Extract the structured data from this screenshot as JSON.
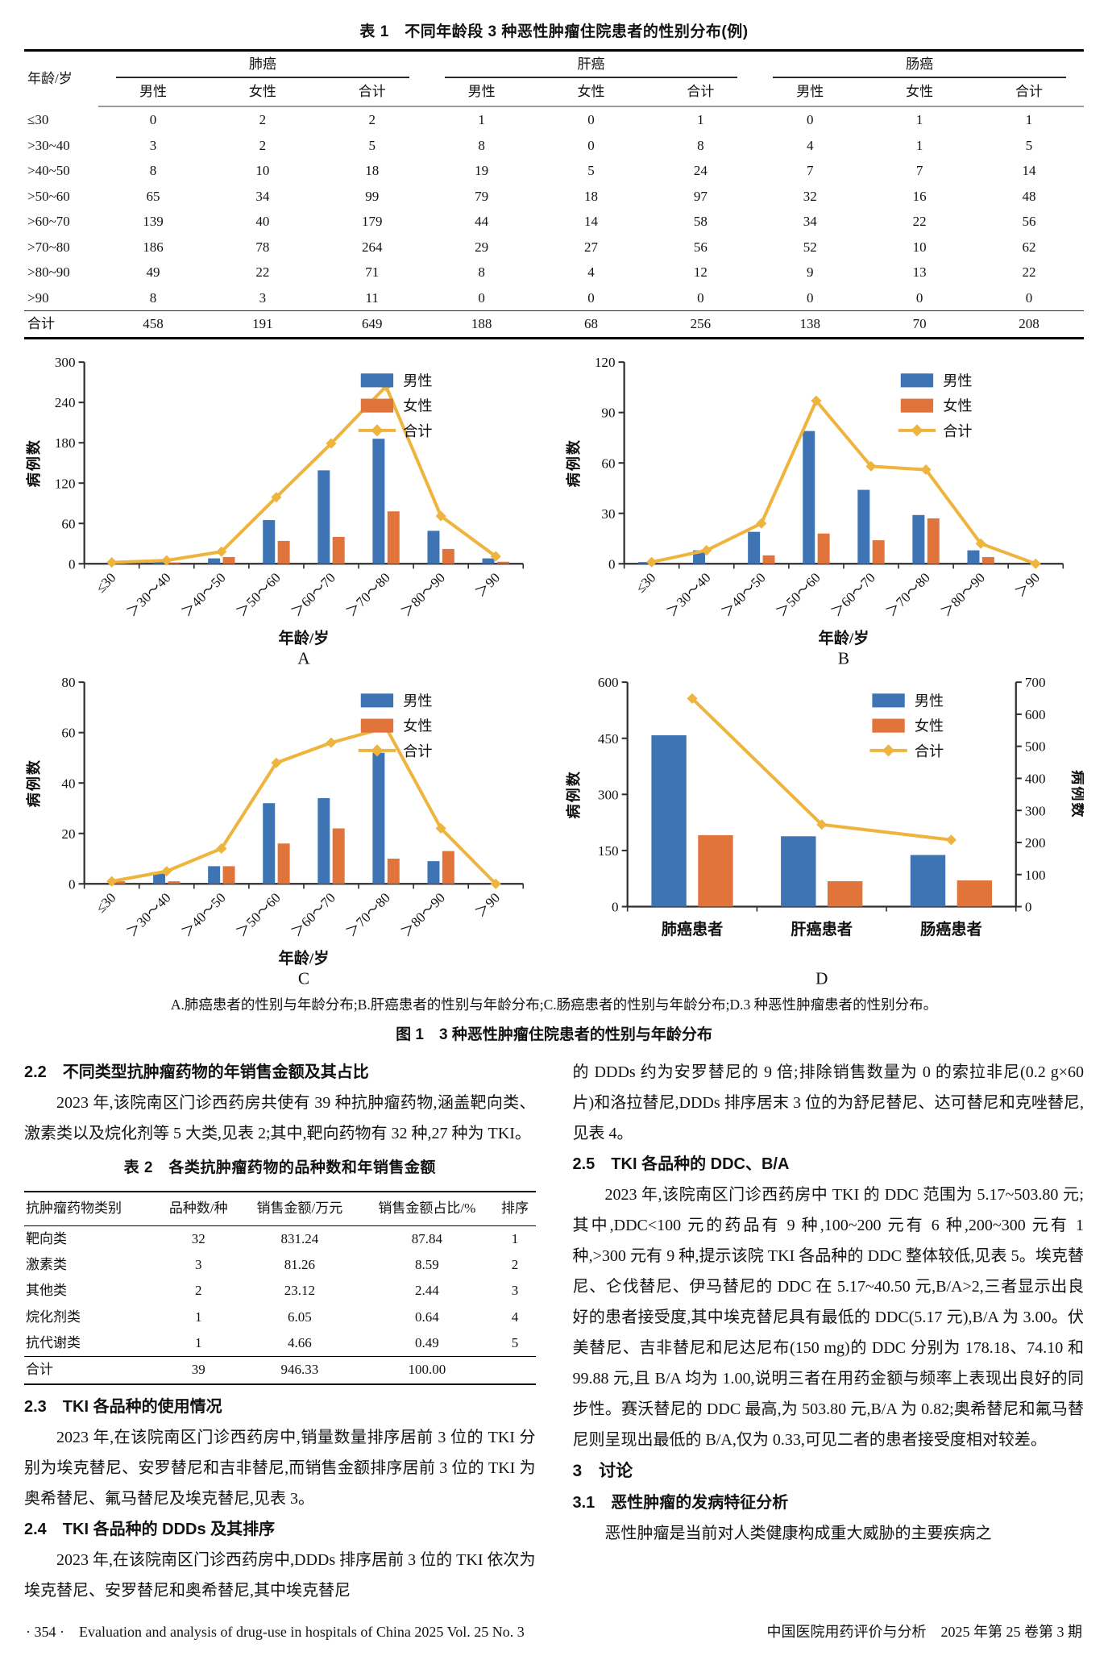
{
  "table1": {
    "title": "表 1　不同年龄段 3 种恶性肿瘤住院患者的性别分布(例)",
    "corner": "年龄/岁",
    "groups": [
      "肺癌",
      "肝癌",
      "肠癌"
    ],
    "subheads": [
      "男性",
      "女性",
      "合计"
    ],
    "rows": [
      {
        "label": "≤30",
        "values": [
          0,
          2,
          2,
          1,
          0,
          1,
          0,
          1,
          1
        ]
      },
      {
        "label": ">30~40",
        "values": [
          3,
          2,
          5,
          8,
          0,
          8,
          4,
          1,
          5
        ]
      },
      {
        "label": ">40~50",
        "values": [
          8,
          10,
          18,
          19,
          5,
          24,
          7,
          7,
          14
        ]
      },
      {
        "label": ">50~60",
        "values": [
          65,
          34,
          99,
          79,
          18,
          97,
          32,
          16,
          48
        ]
      },
      {
        "label": ">60~70",
        "values": [
          139,
          40,
          179,
          44,
          14,
          58,
          34,
          22,
          56
        ]
      },
      {
        "label": ">70~80",
        "values": [
          186,
          78,
          264,
          29,
          27,
          56,
          52,
          10,
          62
        ]
      },
      {
        "label": ">80~90",
        "values": [
          49,
          22,
          71,
          8,
          4,
          12,
          9,
          13,
          22
        ]
      },
      {
        "label": ">90",
        "values": [
          8,
          3,
          11,
          0,
          0,
          0,
          0,
          0,
          0
        ]
      }
    ],
    "total": {
      "label": "合计",
      "values": [
        458,
        191,
        649,
        188,
        68,
        256,
        138,
        70,
        208
      ]
    }
  },
  "chart_data": [
    {
      "id": "A",
      "type": "bar+line",
      "label": "A",
      "categories": [
        "≤30",
        "＞30～40",
        "＞40～50",
        "＞50～60",
        "＞60～70",
        "＞70～80",
        "＞80～90",
        "＞90"
      ],
      "series": [
        {
          "name": "男性",
          "type": "bar",
          "color": "#3e74b4",
          "values": [
            0,
            3,
            8,
            65,
            139,
            186,
            49,
            8
          ]
        },
        {
          "name": "女性",
          "type": "bar",
          "color": "#e0743a",
          "values": [
            2,
            2,
            10,
            34,
            40,
            78,
            22,
            3
          ]
        },
        {
          "name": "合计",
          "type": "line",
          "color": "#eeb43e",
          "values": [
            2,
            5,
            18,
            99,
            179,
            264,
            71,
            11
          ]
        }
      ],
      "xlabel": "年龄/岁",
      "ylabel": "病例数",
      "ylim": [
        0,
        300
      ],
      "ytick": 60,
      "rotate_x_labels": true,
      "legend_position": "top-right",
      "grid": false
    },
    {
      "id": "B",
      "type": "bar+line",
      "label": "B",
      "categories": [
        "≤30",
        "＞30～40",
        "＞40～50",
        "＞50～60",
        "＞60～70",
        "＞70～80",
        "＞80～90",
        "＞90"
      ],
      "series": [
        {
          "name": "男性",
          "type": "bar",
          "color": "#3e74b4",
          "values": [
            1,
            8,
            19,
            79,
            44,
            29,
            8,
            0
          ]
        },
        {
          "name": "女性",
          "type": "bar",
          "color": "#e0743a",
          "values": [
            0,
            0,
            5,
            18,
            14,
            27,
            4,
            0
          ]
        },
        {
          "name": "合计",
          "type": "line",
          "color": "#eeb43e",
          "values": [
            1,
            8,
            24,
            97,
            58,
            56,
            12,
            0
          ]
        }
      ],
      "xlabel": "年龄/岁",
      "ylabel": "病例数",
      "ylim": [
        0,
        120
      ],
      "ytick": 30,
      "rotate_x_labels": true,
      "legend_position": "top-right",
      "grid": false
    },
    {
      "id": "C",
      "type": "bar+line",
      "label": "C",
      "categories": [
        "≤30",
        "＞30～40",
        "＞40～50",
        "＞50～60",
        "＞60～70",
        "＞70～80",
        "＞80～90",
        "＞90"
      ],
      "series": [
        {
          "name": "男性",
          "type": "bar",
          "color": "#3e74b4",
          "values": [
            0,
            4,
            7,
            32,
            34,
            52,
            9,
            0
          ]
        },
        {
          "name": "女性",
          "type": "bar",
          "color": "#e0743a",
          "values": [
            1,
            1,
            7,
            16,
            22,
            10,
            13,
            0
          ]
        },
        {
          "name": "合计",
          "type": "line",
          "color": "#eeb43e",
          "values": [
            1,
            5,
            14,
            48,
            56,
            62,
            22,
            0
          ]
        }
      ],
      "xlabel": "年龄/岁",
      "ylabel": "病例数",
      "ylim": [
        0,
        80
      ],
      "ytick": 20,
      "rotate_x_labels": true,
      "legend_position": "top-right",
      "grid": false
    },
    {
      "id": "D",
      "type": "bar+line",
      "label": "D",
      "categories": [
        "肺癌患者",
        "肝癌患者",
        "肠癌患者"
      ],
      "series": [
        {
          "name": "男性",
          "type": "bar",
          "color": "#3e74b4",
          "values": [
            458,
            188,
            138
          ]
        },
        {
          "name": "女性",
          "type": "bar",
          "color": "#e0743a",
          "values": [
            191,
            68,
            70
          ]
        },
        {
          "name": "合计",
          "type": "line",
          "color": "#eeb43e",
          "values": [
            649,
            256,
            208
          ],
          "axis": "right"
        }
      ],
      "xlabel": "",
      "ylabel": "病例数",
      "y2label": "病例数",
      "ylim": [
        0,
        600
      ],
      "ytick": 150,
      "y2lim": [
        0,
        700
      ],
      "y2tick": 100,
      "rotate_x_labels": false,
      "legend_position": "top-right",
      "grid": false
    }
  ],
  "figure1": {
    "caption": "A.肺癌患者的性别与年龄分布;B.肝癌患者的性别与年龄分布;C.肠癌患者的性别与年龄分布;D.3 种恶性肿瘤患者的性别分布。",
    "title": "图 1　3 种恶性肿瘤住院患者的性别与年龄分布"
  },
  "sections": {
    "s22_head": "2.2　不同类型抗肿瘤药物的年销售金额及其占比",
    "s22_para": "2023 年,该院南区门诊西药房共使有 39 种抗肿瘤药物,涵盖靶向类、激素类以及烷化剂等 5 大类,见表 2;其中,靶向药物有 32 种,27 种为 TKI。",
    "table2_title": "表 2　各类抗肿瘤药物的品种数和年销售金额",
    "s23_head": "2.3　TKI 各品种的使用情况",
    "s23_para": "2023 年,在该院南区门诊西药房中,销量数量排序居前 3 位的 TKI 分别为埃克替尼、安罗替尼和吉非替尼,而销售金额排序居前 3 位的 TKI 为奥希替尼、氟马替尼及埃克替尼,见表 3。",
    "s24_head": "2.4　TKI 各品种的 DDDs 及其排序",
    "s24_para": "2023 年,在该院南区门诊西药房中,DDDs 排序居前 3 位的 TKI 依次为埃克替尼、安罗替尼和奥希替尼,其中埃克替尼",
    "cont_para": "的 DDDs 约为安罗替尼的 9 倍;排除销售数量为 0 的索拉非尼(0.2 g×60 片)和洛拉替尼,DDDs 排序居末 3 位的为舒尼替尼、达可替尼和克唑替尼,见表 4。",
    "s25_head": "2.5　TKI 各品种的 DDC、B/A",
    "s25_para": "2023 年,该院南区门诊西药房中 TKI 的 DDC 范围为 5.17~503.80 元;其中,DDC<100 元的药品有 9 种,100~200 元有 6 种,200~300 元有 1 种,>300 元有 9 种,提示该院 TKI 各品种的 DDC 整体较低,见表 5。埃克替尼、仑伐替尼、伊马替尼的 DDC 在 5.17~40.50 元,B/A>2,三者显示出良好的患者接受度,其中埃克替尼具有最低的 DDC(5.17 元),B/A 为 3.00。伏美替尼、吉非替尼和尼达尼布(150 mg)的 DDC 分别为 178.18、74.10 和 99.88 元,且 B/A 均为 1.00,说明三者在用药金额与频率上表现出良好的同步性。赛沃替尼的 DDC 最高,为 503.80 元,B/A 为 0.82;奥希替尼和氟马替尼则呈现出最低的 B/A,仅为 0.33,可见二者的患者接受度相对较差。",
    "s3_head": "3　讨论",
    "s31_head": "3.1　恶性肿瘤的发病特征分析",
    "s31_para": "恶性肿瘤是当前对人类健康构成重大威胁的主要疾病之"
  },
  "table2": {
    "headers": [
      "抗肿瘤药物类别",
      "品种数/种",
      "销售金额/万元",
      "销售金额占比/%",
      "排序"
    ],
    "rows": [
      [
        "靶向类",
        "32",
        "831.24",
        "87.84",
        "1"
      ],
      [
        "激素类",
        "3",
        "81.26",
        "8.59",
        "2"
      ],
      [
        "其他类",
        "2",
        "23.12",
        "2.44",
        "3"
      ],
      [
        "烷化剂类",
        "1",
        "6.05",
        "0.64",
        "4"
      ],
      [
        "抗代谢类",
        "1",
        "4.66",
        "0.49",
        "5"
      ]
    ],
    "total": [
      "合计",
      "39",
      "946.33",
      "100.00",
      ""
    ]
  },
  "footer": {
    "left": "· 354 ·　Evaluation and analysis of drug-use in hospitals of China 2025  Vol. 25  No. 3",
    "right": "中国医院用药评价与分析　2025 年第 25 卷第 3 期"
  },
  "colors": {
    "male": "#3e74b4",
    "female": "#e0743a",
    "total_line": "#eeb43e"
  }
}
